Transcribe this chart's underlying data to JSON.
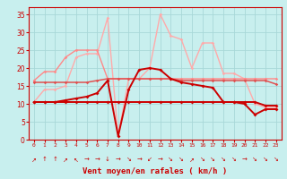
{
  "xlabel": "Vent moyen/en rafales ( km/h )",
  "bg_color": "#c8efee",
  "grid_color": "#a8d8d8",
  "x_hours": [
    0,
    1,
    2,
    3,
    4,
    5,
    6,
    7,
    8,
    9,
    10,
    11,
    12,
    13,
    14,
    15,
    16,
    17,
    18,
    19,
    20,
    21,
    22,
    23
  ],
  "series": [
    {
      "name": "dark_red_flat",
      "color": "#cc0000",
      "lw": 1.4,
      "marker": "D",
      "ms": 2.0,
      "zorder": 5,
      "y": [
        10.5,
        10.5,
        10.5,
        10.5,
        10.5,
        10.5,
        10.5,
        10.5,
        10.5,
        10.5,
        10.5,
        10.5,
        10.5,
        10.5,
        10.5,
        10.5,
        10.5,
        10.5,
        10.5,
        10.5,
        10.5,
        10.5,
        9.5,
        9.5
      ]
    },
    {
      "name": "dark_red_rising",
      "color": "#cc0000",
      "lw": 1.4,
      "marker": "D",
      "ms": 2.0,
      "zorder": 5,
      "y": [
        10.5,
        10.5,
        10.5,
        11,
        11.5,
        12,
        13,
        16.5,
        1,
        14,
        19.5,
        20,
        19.5,
        17,
        16,
        15.5,
        15,
        14.5,
        10.5,
        10.5,
        10,
        7,
        8.5,
        8.5
      ]
    },
    {
      "name": "medium_red_flat",
      "color": "#e05050",
      "lw": 1.1,
      "marker": "D",
      "ms": 1.8,
      "zorder": 4,
      "y": [
        16,
        16,
        16,
        16,
        16,
        16,
        16.5,
        17,
        17,
        17,
        17,
        17,
        17,
        17,
        16.5,
        16.5,
        16.5,
        16.5,
        16.5,
        16.5,
        16.5,
        16.5,
        16.5,
        15.5
      ]
    },
    {
      "name": "light_pink_spike",
      "color": "#ffaaaa",
      "lw": 1.0,
      "marker": "D",
      "ms": 1.8,
      "zorder": 3,
      "y": [
        10.5,
        14,
        14,
        15,
        23,
        24,
        24,
        34,
        1,
        17,
        17,
        20,
        35,
        29,
        28,
        20,
        27,
        27,
        18.5,
        18.5,
        17,
        10,
        9,
        9
      ]
    },
    {
      "name": "medium_pink_hump",
      "color": "#ff8888",
      "lw": 1.0,
      "marker": "D",
      "ms": 1.8,
      "zorder": 3,
      "y": [
        16.5,
        19,
        19,
        23,
        25,
        25,
        25,
        17,
        17,
        17,
        17,
        17,
        17,
        17,
        17,
        17,
        17,
        17,
        17,
        17,
        17,
        17,
        17,
        17
      ]
    }
  ],
  "wind_arrows": [
    "↗",
    "↑",
    "↑",
    "↗",
    "↖",
    "→",
    "→",
    "↓",
    "→",
    "↘",
    "→",
    "↙",
    "→",
    "↘",
    "↘",
    "↗",
    "↘",
    "↘",
    "↘",
    "↘",
    "→",
    "↘",
    "↘",
    "↘"
  ],
  "ylim": [
    0,
    37
  ],
  "yticks": [
    0,
    5,
    10,
    15,
    20,
    25,
    30,
    35
  ],
  "text_color": "#cc0000",
  "spine_color": "#cc0000"
}
